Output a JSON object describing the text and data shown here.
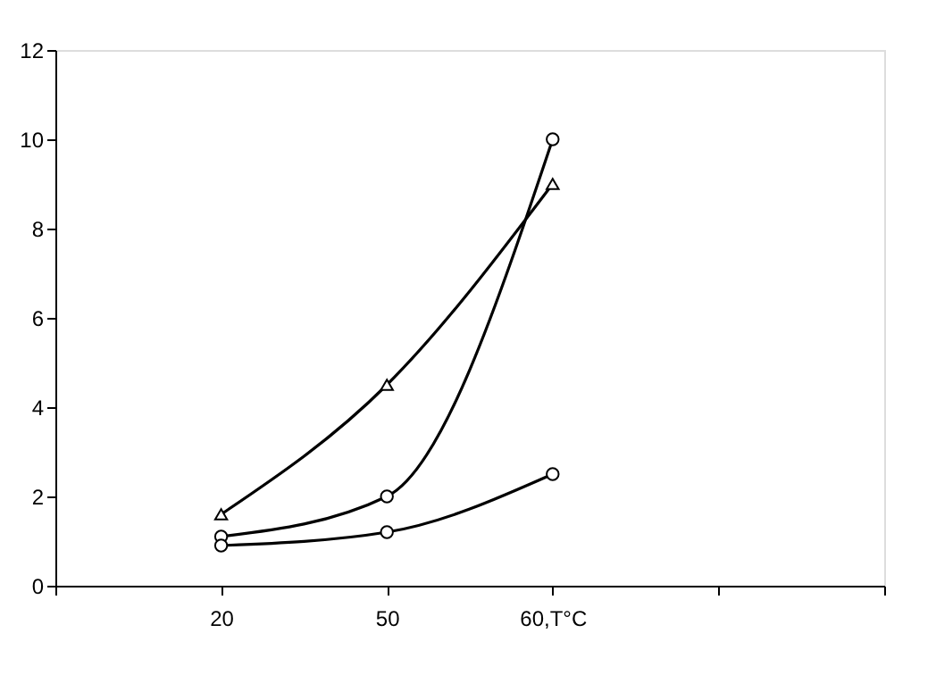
{
  "chart_data": {
    "type": "line",
    "categories": [
      null,
      "20",
      "50",
      "60,T°C",
      null,
      null
    ],
    "series": [
      {
        "color": "#000000",
        "marker": "circle",
        "values": [
          null,
          1.1,
          2.0,
          10.0,
          null,
          null
        ]
      },
      {
        "color": "#000000",
        "marker": "triangle",
        "values": [
          null,
          1.6,
          4.5,
          9.0,
          null,
          null
        ]
      },
      {
        "color": "#000000",
        "marker": "circle",
        "values": [
          null,
          0.9,
          1.2,
          2.5,
          null,
          null
        ]
      }
    ],
    "ylim": [
      0,
      12
    ],
    "yticks": [
      0,
      2,
      4,
      6,
      8,
      10,
      12
    ],
    "grid": false,
    "line_style": "solid"
  }
}
